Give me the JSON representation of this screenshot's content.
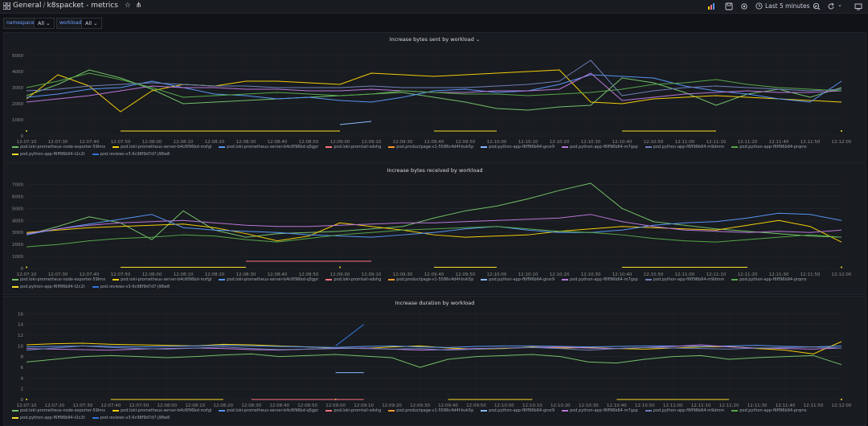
{
  "header": {
    "folder": "General",
    "dashboard": "k8spacket - metrics",
    "time_range": "Last 5 minutes"
  },
  "variables": [
    {
      "label": "namespace",
      "value": "All"
    },
    {
      "label": "workload",
      "value": "All"
    }
  ],
  "legend": [
    {
      "name": "pod.loki-prometheus-node-exporter-59lmx",
      "color": "#73bf69"
    },
    {
      "name": "pod.loki-prometheus-server-b4c6f96bd-mzfgl",
      "color": "#f2cc0c"
    },
    {
      "name": "pod.loki-prometheus-server-b4c6f96bd-q5gpr",
      "color": "#5794f2"
    },
    {
      "name": "pod.loki-promtail-sdshg",
      "color": "#ff7383"
    },
    {
      "name": "pod.productpage-v1-5586c4d4f-bvk5p",
      "color": "#ff9830"
    },
    {
      "name": "pod.python-app-f6ff96b64-gnsr9",
      "color": "#8ab8ff"
    },
    {
      "name": "pod.python-app-f6ff96b64-m7gsp",
      "color": "#b877d9"
    },
    {
      "name": "pod.python-app-f6ff96b64-m9dmm",
      "color": "#6e7fb8"
    },
    {
      "name": "pod.python-app-f6ff96b94-prqms",
      "color": "#56a64b"
    },
    {
      "name": "pod.python-app-f6ff96b94-t2c2t",
      "color": "#fade2a"
    },
    {
      "name": "pod.reviews-v3-6c98f9d7d7-j98w8",
      "color": "#3274d9"
    }
  ],
  "chart_data": [
    {
      "type": "line",
      "title": "Increase bytes sent by workload",
      "x": [
        "12:07:10",
        "12:07:30",
        "12:07:40",
        "12:07:50",
        "12:08:00",
        "12:08:10",
        "12:08:20",
        "12:08:30",
        "12:08:40",
        "12:08:50",
        "12:09:00",
        "12:09:10",
        "12:09:30",
        "12:09:40",
        "12:09:50",
        "12:10:00",
        "12:10:10",
        "12:10:20",
        "12:10:30",
        "12:10:40",
        "12:10:50",
        "12:11:00",
        "12:11:10",
        "12:11:20",
        "12:11:40",
        "12:11:50",
        "12:12:00"
      ],
      "yticks": [
        "0",
        "1000",
        "2000",
        "3000",
        "4000",
        "5000"
      ],
      "ylim": [
        0,
        5500
      ],
      "series": [
        {
          "name": "pod.loki-prometheus-node-exporter-59lmx",
          "values": [
            2500,
            3200,
            4100,
            3600,
            2900,
            2000,
            2100,
            2200,
            2300,
            2400,
            2500,
            2600,
            2700,
            2400,
            2100,
            1700,
            1600,
            1800,
            1900,
            3600,
            3300,
            2700,
            1900,
            2600,
            2900,
            2400,
            3000
          ]
        },
        {
          "name": "pod.loki-prometheus-server-b4c6f96bd-mzfgl",
          "values": [
            2300,
            3800,
            3100,
            1500,
            2800,
            3200,
            3100,
            3400,
            3400,
            3300,
            3200,
            3900,
            3800,
            3700,
            3800,
            3900,
            4000,
            4100,
            2100,
            2000,
            2300,
            2400,
            2500,
            2400,
            2300,
            2200,
            2100
          ]
        },
        {
          "name": "pod.loki-prometheus-server-b4c6f96bd-q5gpr",
          "values": [
            2400,
            2600,
            2900,
            3000,
            3400,
            3000,
            2600,
            2500,
            2300,
            2400,
            2200,
            2100,
            2400,
            2800,
            2900,
            2700,
            2800,
            3200,
            3800,
            3700,
            3600,
            3100,
            2800,
            2600,
            2300,
            2100,
            3400
          ]
        },
        {
          "name": "pod.python-app-f6ff96b64-m7gsp",
          "values": [
            2100,
            2300,
            2500,
            2800,
            3100,
            3000,
            3000,
            2900,
            2900,
            2800,
            2800,
            2900,
            2800,
            2700,
            2700,
            2800,
            2800,
            2900,
            3900,
            2200,
            2400,
            2600,
            2700,
            2800,
            2700,
            2700,
            2800
          ]
        },
        {
          "name": "pod.python-app-f6ff96b64-m9dmm",
          "values": [
            2800,
            2900,
            3100,
            3200,
            3300,
            3200,
            3100,
            3100,
            3000,
            3000,
            3000,
            3100,
            3000,
            3000,
            3000,
            3100,
            3200,
            3400,
            4700,
            2500,
            2800,
            3000,
            3100,
            3000,
            2900,
            2800,
            2900
          ]
        },
        {
          "name": "pod.python-app-f6ff96b94-prqms",
          "values": [
            3000,
            3400,
            3900,
            3500,
            3000,
            2400,
            2500,
            2600,
            2700,
            2600,
            2500,
            2600,
            2800,
            2700,
            2600,
            2600,
            2500,
            2600,
            2700,
            2900,
            3200,
            3300,
            3500,
            3200,
            3000,
            2900,
            2800
          ]
        },
        {
          "name": "pod.python-app-f6ff96b94-t2c2t",
          "values": [
            300,
            null,
            null,
            300,
            300,
            300,
            300,
            300,
            300,
            300,
            300,
            null,
            null,
            300,
            300,
            300,
            null,
            null,
            null,
            300,
            300,
            300,
            300,
            null,
            null,
            null,
            300
          ]
        },
        {
          "name": "pod.python-app-f6ff96b64-gnsr9",
          "values": [
            null,
            null,
            null,
            null,
            null,
            null,
            null,
            null,
            null,
            null,
            700,
            900,
            null,
            null,
            null,
            null,
            null,
            null,
            null,
            null,
            null,
            null,
            null,
            null,
            null,
            null,
            null
          ]
        }
      ]
    },
    {
      "type": "line",
      "title": "Increase bytes received by workload",
      "x": [
        "12:07:10",
        "12:07:30",
        "12:07:40",
        "12:07:50",
        "12:08:00",
        "12:08:10",
        "12:08:20",
        "12:08:30",
        "12:08:40",
        "12:08:50",
        "12:09:00",
        "12:09:10",
        "12:09:30",
        "12:09:40",
        "12:09:50",
        "12:10:00",
        "12:10:10",
        "12:10:20",
        "12:10:30",
        "12:10:40",
        "12:10:50",
        "12:11:00",
        "12:11:10",
        "12:11:20",
        "12:11:30",
        "12:11:50",
        "12:12:00"
      ],
      "yticks": [
        "0",
        "1000",
        "2000",
        "3000",
        "4000",
        "5000",
        "6000",
        "7000"
      ],
      "ylim": [
        0,
        7500
      ],
      "series": [
        {
          "name": "pod.loki-prometheus-node-exporter-59lmx",
          "values": [
            2800,
            3500,
            4300,
            3800,
            2400,
            4800,
            3200,
            2600,
            2900,
            3000,
            3100,
            3300,
            3500,
            4200,
            4800,
            5200,
            5800,
            6500,
            7100,
            5000,
            3900,
            3600,
            3300,
            3100,
            2900,
            2700,
            2600
          ]
        },
        {
          "name": "pod.loki-prometheus-server-b4c6f96bd-mzfgl",
          "values": [
            3000,
            3200,
            3400,
            3500,
            3600,
            3700,
            3400,
            2900,
            2300,
            2700,
            3800,
            3500,
            3200,
            2800,
            2600,
            2700,
            2800,
            3100,
            3300,
            3500,
            3400,
            3300,
            3200,
            3600,
            4000,
            3500,
            2200
          ]
        },
        {
          "name": "pod.loki-prometheus-server-b4c6f96bd-q5gpr",
          "values": [
            2800,
            3300,
            3700,
            4100,
            4500,
            3400,
            3200,
            3100,
            3000,
            2800,
            2700,
            2600,
            2800,
            3000,
            3300,
            3500,
            3200,
            3000,
            3000,
            3200,
            3600,
            3800,
            3900,
            4200,
            4600,
            4500,
            4000
          ]
        },
        {
          "name": "pod.python-app-f6ff96b64-m7gsp",
          "values": [
            2900,
            3300,
            3600,
            3800,
            3900,
            4000,
            3800,
            3600,
            3500,
            3500,
            3600,
            3700,
            3800,
            3800,
            3900,
            4000,
            4100,
            4200,
            4500,
            3900,
            3500,
            3200,
            3100,
            3000,
            3100,
            3000,
            3200
          ]
        },
        {
          "name": "pod.python-app-f6ff96b94-prqms",
          "values": [
            1800,
            2000,
            2300,
            2500,
            2600,
            2800,
            2700,
            2400,
            2200,
            2500,
            2800,
            3000,
            3200,
            3300,
            3400,
            3500,
            3300,
            3100,
            3000,
            2800,
            2500,
            2300,
            2200,
            2400,
            2600,
            2800,
            2600
          ]
        },
        {
          "name": "pod.python-app-f6ff96b94-t2c2t",
          "values": [
            100,
            null,
            null,
            100,
            100,
            100,
            100,
            100,
            null,
            null,
            100,
            null,
            null,
            100,
            100,
            100,
            null,
            null,
            null,
            100,
            100,
            100,
            100,
            100,
            null,
            null,
            100
          ]
        },
        {
          "name": "pod.loki-promtail-sdshg",
          "values": [
            null,
            null,
            null,
            null,
            null,
            null,
            null,
            600,
            600,
            600,
            600,
            600,
            null,
            null,
            null,
            null,
            null,
            null,
            null,
            null,
            null,
            null,
            null,
            null,
            null,
            null,
            null
          ]
        }
      ]
    },
    {
      "type": "line",
      "title": "Increase duration by workload",
      "x": [
        "12:07:10",
        "12:07:20",
        "12:07:30",
        "12:07:40",
        "12:07:50",
        "12:08:00",
        "12:08:10",
        "12:08:20",
        "12:08:30",
        "12:08:40",
        "12:08:50",
        "12:09:00",
        "12:09:10",
        "12:09:20",
        "12:09:30",
        "12:09:40",
        "12:09:50",
        "12:10:00",
        "12:10:10",
        "12:10:20",
        "12:10:30",
        "12:10:40",
        "12:10:50",
        "12:11:00",
        "12:11:10",
        "12:11:20",
        "12:11:30",
        "12:11:40",
        "12:11:50",
        "12:12:00"
      ],
      "yticks": [
        "0",
        "2",
        "4",
        "6",
        "8",
        "10",
        "12",
        "14",
        "16"
      ],
      "ylim": [
        0,
        16.5
      ],
      "series": [
        {
          "name": "pod.loki-prometheus-node-exporter-59lmx",
          "values": [
            7,
            7.5,
            8,
            8.2,
            8,
            7.8,
            8,
            8.3,
            8.5,
            8,
            8.2,
            8.4,
            8.1,
            7.8,
            6,
            7.5,
            8,
            8.2,
            8.4,
            8,
            7,
            6.8,
            7.5,
            8,
            8.2,
            7.5,
            7.8,
            8,
            8.2,
            6.5
          ]
        },
        {
          "name": "pod.loki-prometheus-server-b4c6f96bd-mzfgl",
          "values": [
            10.2,
            10.4,
            10.5,
            10.3,
            10.2,
            10.1,
            10,
            10.3,
            10.2,
            10,
            9.8,
            9.6,
            9.5,
            9.8,
            10,
            9.6,
            9.4,
            9.5,
            9.8,
            9.6,
            9.7,
            9.5,
            9.4,
            9.6,
            9.8,
            9.9,
            9.5,
            9.2,
            8.5,
            10.8
          ]
        },
        {
          "name": "pod.loki-prometheus-server-b4c6f96bd-q5gpr",
          "values": [
            9.8,
            9.9,
            10,
            9.9,
            9.8,
            9.9,
            10,
            10.1,
            10,
            9.9,
            9.8,
            9.7,
            9.9,
            10,
            9.8,
            9.7,
            9.9,
            10,
            10,
            9.9,
            9.8,
            9.9,
            10,
            10,
            9.9,
            10,
            10.1,
            9.9,
            9.8,
            10
          ]
        },
        {
          "name": "pod.python-app-f6ff96b64-m7gsp",
          "values": [
            9.5,
            9.4,
            9.3,
            9.2,
            9.4,
            9.5,
            9.6,
            9.5,
            9.3,
            9.2,
            9.4,
            9.5,
            9.6,
            9.4,
            9.2,
            9.3,
            9.5,
            9.6,
            9.7,
            9.8,
            9.6,
            9.5,
            9.7,
            9.9,
            10.2,
            9.8,
            9.6,
            9.5,
            9.4,
            9.6
          ]
        },
        {
          "name": "pod.python-app-f6ff96b64-m9dmm",
          "values": [
            9.2,
            9.6,
            10,
            9.7,
            9.5,
            9.4,
            9.6,
            9.8,
            9.5,
            9.3,
            9.4,
            9.6,
            9.5,
            9.4,
            9.5,
            9.2,
            9.4,
            9.6,
            9.7,
            9.5,
            9.2,
            9.5,
            9.7,
            9.6,
            9.5,
            9.4,
            9.6,
            9.7,
            9.8,
            9.6
          ]
        },
        {
          "name": "pod.python-app-f6ff96b94-t2c2t",
          "values": [
            0,
            null,
            null,
            0,
            0,
            0,
            0,
            0,
            null,
            null,
            null,
            0,
            null,
            null,
            null,
            0,
            0,
            0,
            0,
            null,
            null,
            0,
            0,
            0,
            0,
            0,
            null,
            null,
            null,
            0
          ]
        },
        {
          "name": "pod.reviews-v3-6c98f9d7d7-j98w8",
          "values": [
            null,
            null,
            null,
            null,
            null,
            null,
            null,
            null,
            null,
            null,
            null,
            10,
            14,
            null,
            null,
            null,
            null,
            null,
            null,
            null,
            null,
            null,
            null,
            null,
            null,
            null,
            null,
            null,
            null,
            null
          ]
        },
        {
          "name": "pod.python-app-f6ff96b64-gnsr9",
          "values": [
            null,
            null,
            null,
            null,
            null,
            null,
            null,
            null,
            null,
            null,
            null,
            5,
            5,
            null,
            null,
            null,
            null,
            null,
            null,
            null,
            null,
            null,
            null,
            null,
            null,
            null,
            null,
            null,
            null,
            null
          ]
        },
        {
          "name": "pod.loki-promtail-sdshg",
          "values": [
            null,
            null,
            null,
            null,
            null,
            null,
            null,
            null,
            0,
            0,
            0,
            0,
            0,
            null,
            null,
            null,
            null,
            null,
            null,
            null,
            null,
            null,
            null,
            null,
            null,
            null,
            null,
            null,
            null,
            null
          ]
        }
      ]
    }
  ]
}
